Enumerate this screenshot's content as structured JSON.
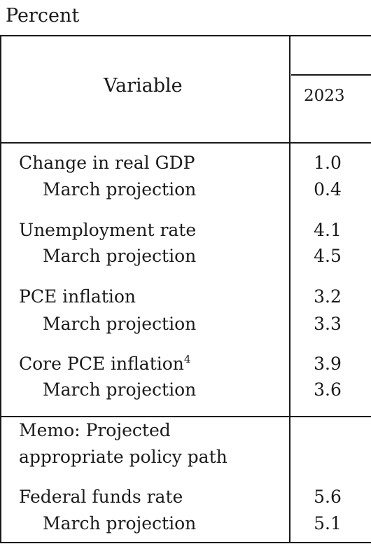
{
  "caption": "Percent",
  "header": {
    "variable_label": "Variable",
    "year": "2023"
  },
  "rows": [
    {
      "label": "Change in real GDP",
      "footnote": "",
      "value": "1.0",
      "indent": false
    },
    {
      "label": "March projection",
      "footnote": "",
      "value": "0.4",
      "indent": true
    },
    {
      "label": "Unemployment rate",
      "footnote": "",
      "value": "4.1",
      "indent": false
    },
    {
      "label": "March projection",
      "footnote": "",
      "value": "4.5",
      "indent": true
    },
    {
      "label": "PCE inflation",
      "footnote": "",
      "value": "3.2",
      "indent": false
    },
    {
      "label": "March projection",
      "footnote": "",
      "value": "3.3",
      "indent": true
    },
    {
      "label": "Core PCE inflation",
      "footnote": "4",
      "value": "3.9",
      "indent": false
    },
    {
      "label": "March projection",
      "footnote": "",
      "value": "3.6",
      "indent": true
    }
  ],
  "memo": {
    "line1": "Memo: Projected",
    "line2": "appropriate policy path"
  },
  "memo_rows": [
    {
      "label": "Federal funds rate",
      "value": "5.6",
      "indent": false
    },
    {
      "label": "March projection",
      "value": "5.1",
      "indent": true
    }
  ]
}
